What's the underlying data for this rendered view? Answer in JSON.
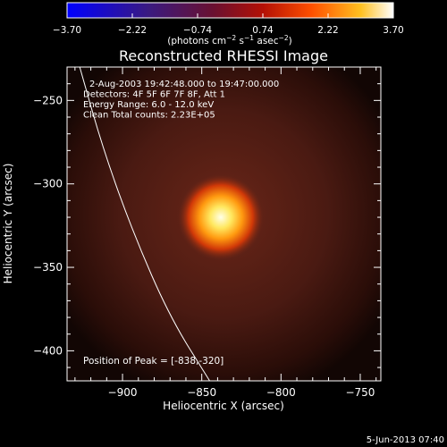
{
  "chart_data": {
    "type": "heatmap",
    "title": "Reconstructed RHESSI Image",
    "colorbar": {
      "ticks": [
        "-3.70",
        "-2.22",
        "-0.74",
        "0.74",
        "2.22",
        "3.70"
      ],
      "range": [
        -3.7,
        3.7
      ],
      "unit_label_parts": {
        "open": "(photons cm",
        "exp1": "−2",
        "mid": " s",
        "exp2": "−1",
        "mid2": " asec",
        "exp3": "−2",
        "close": ")"
      }
    },
    "xlabel": "Heliocentric X (arcsec)",
    "ylabel": "Heliocentric Y (arcsec)",
    "xlim": [
      -935,
      -737
    ],
    "ylim": [
      -418,
      -230
    ],
    "xticks": [
      {
        "value": -900,
        "label": "−900"
      },
      {
        "value": -850,
        "label": "−850"
      },
      {
        "value": -800,
        "label": "−800"
      },
      {
        "value": -750,
        "label": "−750"
      }
    ],
    "yticks": [
      {
        "value": -250,
        "label": "−250"
      },
      {
        "value": -300,
        "label": "−300"
      },
      {
        "value": -350,
        "label": "−350"
      },
      {
        "value": -400,
        "label": "−400"
      }
    ],
    "annotations": [
      "2-Aug-2003 19:42:48.000 to 19:47:00.000",
      "Detectors: 4F 5F 6F 7F 8F, Att 1",
      "Energy Range: 6.0 - 12.0 keV",
      "Clean    Total counts: 2.23E+05"
    ],
    "peak_label": "Position of Peak = [-838,-320]",
    "peak": {
      "x": -838,
      "y": -320,
      "value": 3.7
    },
    "limb_curve": [
      {
        "x": -927,
        "y": -230
      },
      {
        "x": -912,
        "y": -280
      },
      {
        "x": -893,
        "y": -330
      },
      {
        "x": -870,
        "y": -380
      },
      {
        "x": -845,
        "y": -418
      }
    ],
    "timestamp": "5-Jun-2013 07:40"
  }
}
